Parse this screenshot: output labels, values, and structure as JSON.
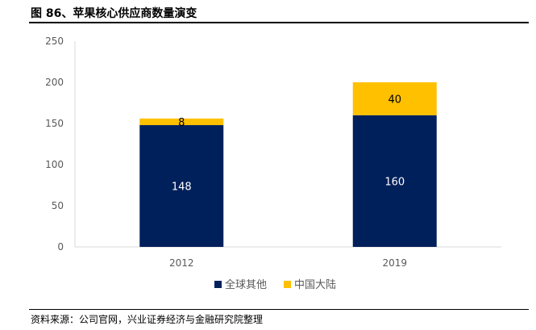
{
  "figure": {
    "title": "图 86、苹果核心供应商数量演变",
    "source": "资料来源：公司官网，兴业证券经济与金融研究院整理"
  },
  "chart_data": {
    "type": "bar",
    "stacked": true,
    "categories": [
      "2012",
      "2019"
    ],
    "series": [
      {
        "name": "全球其他",
        "values": [
          148,
          160
        ],
        "color": "#00205B"
      },
      {
        "name": "中国大陆",
        "values": [
          8,
          40
        ],
        "color": "#FFC000"
      }
    ],
    "data_labels": [
      [
        "148",
        "160"
      ],
      [
        "8",
        "40"
      ]
    ],
    "ylim": [
      0,
      250
    ],
    "yticks": [
      0,
      50,
      100,
      150,
      200,
      250
    ],
    "grid": false,
    "legend": "bottom-center"
  }
}
